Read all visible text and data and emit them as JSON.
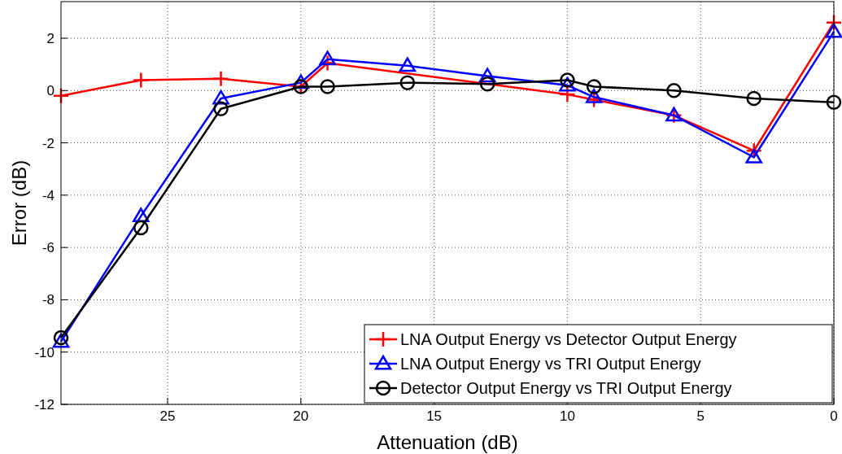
{
  "chart_data": {
    "type": "line",
    "xlabel": "Attenuation (dB)",
    "ylabel": "Error (dB)",
    "xlim": [
      29,
      0
    ],
    "xticks": [
      25,
      20,
      15,
      10,
      5,
      0
    ],
    "ylim": [
      -12,
      3.4
    ],
    "yticks": [
      -12,
      -10,
      -8,
      -6,
      -4,
      -2,
      0,
      2
    ],
    "grid": true,
    "legend": "bottom right",
    "line_style": "solid",
    "series": [
      {
        "name": "LNA Output Energy vs Detector Output Energy",
        "color": "#ff0000",
        "marker": "cross",
        "x": [
          29,
          26,
          23,
          20,
          19,
          10,
          9,
          6,
          3,
          0
        ],
        "values": [
          -0.2,
          0.4,
          0.45,
          0.15,
          1.05,
          -0.15,
          -0.35,
          -0.95,
          -2.3,
          2.6
        ]
      },
      {
        "name": "LNA Output Energy vs TRI Output Energy",
        "color": "#0000ff",
        "marker": "triangle",
        "x": [
          29,
          26,
          23,
          20,
          19,
          16,
          13,
          10,
          9,
          6,
          3,
          0
        ],
        "values": [
          -9.6,
          -4.8,
          -0.3,
          0.3,
          1.2,
          0.95,
          0.55,
          0.2,
          -0.25,
          -0.95,
          -2.55,
          2.25
        ]
      },
      {
        "name": "Detector Output Energy vs TRI Output Energy",
        "color": "#000000",
        "marker": "circle",
        "x": [
          29,
          26,
          23,
          20,
          19,
          16,
          13,
          10,
          9,
          6,
          3,
          0
        ],
        "values": [
          -9.45,
          -5.25,
          -0.7,
          0.15,
          0.15,
          0.3,
          0.25,
          0.4,
          0.15,
          0,
          -0.3,
          -0.45
        ]
      }
    ]
  }
}
